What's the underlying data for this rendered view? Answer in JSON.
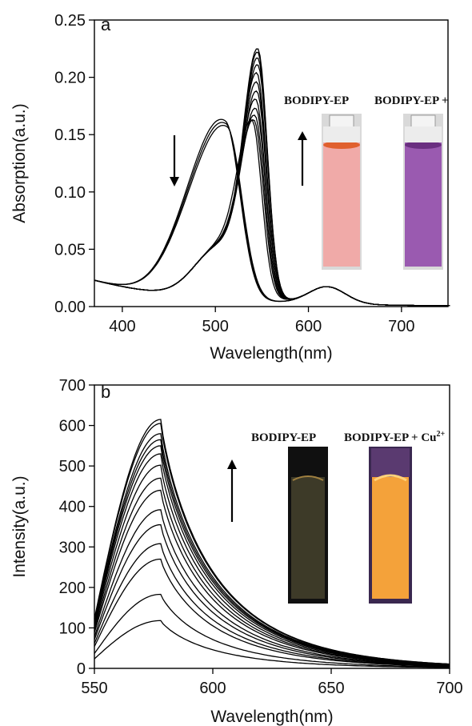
{
  "chart_data": [
    {
      "panel": "a",
      "type": "line",
      "xlabel": "Wavelength(nm)",
      "ylabel": "Absorption(a.u.)",
      "xlim": [
        370,
        750
      ],
      "ylim": [
        0,
        0.25
      ],
      "xticks": [
        400,
        500,
        600,
        700
      ],
      "yticks": [
        "0.00",
        "0.05",
        "0.10",
        "0.15",
        "0.20",
        "0.25"
      ],
      "grid": false,
      "arrows": [
        {
          "x": 453,
          "direction": "down"
        },
        {
          "x": 588,
          "direction": "up"
        }
      ],
      "inset": {
        "labels": [
          "BODIPY-EP",
          "BODIPY-EP +"
        ],
        "vial_colors": [
          "#f0aaa8",
          "#9a5ab0"
        ]
      },
      "series_shape": {
        "baseline_370": 0.023,
        "isosbestic_nm": 520,
        "isosbestic_abs": 0.133,
        "minor_band_nm": 620,
        "minor_band_abs": 0.015
      },
      "series": [
        {
          "peak_nm": 511,
          "peak_abs": 0.145
        },
        {
          "peak_nm": 512,
          "peak_abs": 0.143
        },
        {
          "peak_nm": 513,
          "peak_abs": 0.141
        },
        {
          "peak_nm": 540,
          "peak_abs": 0.138
        },
        {
          "peak_nm": 542,
          "peak_abs": 0.14
        },
        {
          "peak_nm": 543,
          "peak_abs": 0.145
        },
        {
          "peak_nm": 544,
          "peak_abs": 0.152
        },
        {
          "peak_nm": 544,
          "peak_abs": 0.16
        },
        {
          "peak_nm": 545,
          "peak_abs": 0.168
        },
        {
          "peak_nm": 545,
          "peak_abs": 0.176
        },
        {
          "peak_nm": 545,
          "peak_abs": 0.184
        },
        {
          "peak_nm": 546,
          "peak_abs": 0.192
        },
        {
          "peak_nm": 546,
          "peak_abs": 0.198
        },
        {
          "peak_nm": 546,
          "peak_abs": 0.203
        },
        {
          "peak_nm": 546,
          "peak_abs": 0.206
        }
      ]
    },
    {
      "panel": "b",
      "type": "line",
      "xlabel": "Wavelength(nm)",
      "ylabel": "Intensity(a.u.)",
      "xlim": [
        550,
        700
      ],
      "ylim": [
        0,
        700
      ],
      "xticks": [
        550,
        600,
        650,
        700
      ],
      "yticks": [
        0,
        100,
        200,
        300,
        400,
        500,
        600,
        700
      ],
      "grid": false,
      "arrows": [
        {
          "x": 612,
          "direction": "up"
        }
      ],
      "inset": {
        "labels": [
          "BODIPY-EP",
          "BODIPY-EP + Cu",
          "2+"
        ],
        "vial_colors": [
          "#3d3a28",
          "#f4a23a"
        ]
      },
      "peak_nm": 578,
      "start_ratio_at_550": 0.2,
      "end_ratio_at_700": 0.0175,
      "series": [
        {
          "peak": 118
        },
        {
          "peak": 183
        },
        {
          "peak": 270
        },
        {
          "peak": 308
        },
        {
          "peak": 355
        },
        {
          "peak": 392
        },
        {
          "peak": 440
        },
        {
          "peak": 470
        },
        {
          "peak": 502
        },
        {
          "peak": 530
        },
        {
          "peak": 550
        },
        {
          "peak": 565
        },
        {
          "peak": 580
        },
        {
          "peak": 605
        },
        {
          "peak": 615
        }
      ]
    }
  ]
}
